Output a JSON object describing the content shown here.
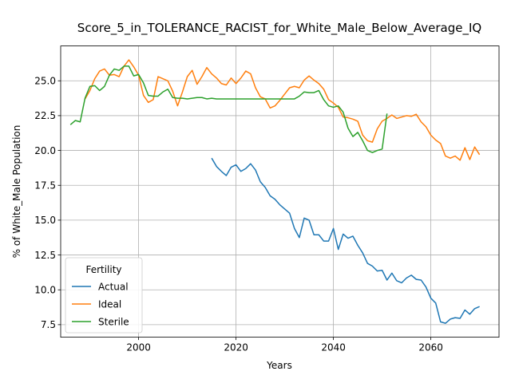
{
  "chart_data": {
    "type": "line",
    "title": "Score_5_in_TOLERANCE_RACIST_for_White_Male_Below_Average_IQ",
    "xlabel": "Years",
    "ylabel": "% of White_Male Population",
    "xlim": [
      1984,
      2074
    ],
    "ylim": [
      6.6,
      27.5
    ],
    "xticks": [
      2000,
      2020,
      2040,
      2060
    ],
    "yticks": [
      7.5,
      10.0,
      12.5,
      15.0,
      17.5,
      20.0,
      22.5,
      25.0
    ],
    "ytick_labels": [
      "7.5",
      "10.0",
      "12.5",
      "15.0",
      "17.5",
      "20.0",
      "22.5",
      "25.0"
    ],
    "grid": true,
    "legend": {
      "title": "Fertility",
      "placement": "lower-left"
    },
    "series": [
      {
        "name": "Actual",
        "color": "#1f77b4",
        "x": [
          2015,
          2016,
          2017,
          2018,
          2019,
          2020,
          2021,
          2022,
          2023,
          2024,
          2025,
          2026,
          2027,
          2028,
          2029,
          2030,
          2031,
          2032,
          2033,
          2034,
          2035,
          2036,
          2037,
          2038,
          2039,
          2040,
          2041,
          2042,
          2043,
          2044,
          2045,
          2046,
          2047,
          2048,
          2049,
          2050,
          2051,
          2052,
          2053,
          2054,
          2055,
          2056,
          2057,
          2058,
          2059,
          2060,
          2061,
          2062,
          2063,
          2064,
          2065,
          2066,
          2067,
          2068,
          2069,
          2070
        ],
        "values": [
          19.45,
          18.85,
          18.5,
          18.2,
          18.8,
          18.97,
          18.5,
          18.7,
          19.05,
          18.6,
          17.75,
          17.35,
          16.75,
          16.5,
          16.1,
          15.8,
          15.5,
          14.4,
          13.75,
          15.15,
          15.0,
          13.95,
          13.95,
          13.5,
          13.5,
          14.4,
          12.9,
          14.0,
          13.7,
          13.85,
          13.2,
          12.65,
          11.9,
          11.7,
          11.35,
          11.4,
          10.7,
          11.2,
          10.65,
          10.5,
          10.85,
          11.05,
          10.75,
          10.7,
          10.2,
          9.4,
          9.05,
          7.7,
          7.6,
          7.9,
          8.0,
          7.95,
          8.55,
          8.25,
          8.65,
          8.8
        ]
      },
      {
        "name": "Ideal",
        "color": "#ff7f0e",
        "x": [
          1989,
          1990,
          1991,
          1992,
          1993,
          1994,
          1995,
          1996,
          1997,
          1998,
          1999,
          2000,
          2001,
          2002,
          2003,
          2004,
          2005,
          2006,
          2007,
          2008,
          2009,
          2010,
          2011,
          2012,
          2013,
          2014,
          2015,
          2016,
          2017,
          2018,
          2019,
          2020,
          2021,
          2022,
          2023,
          2024,
          2025,
          2026,
          2027,
          2028,
          2029,
          2030,
          2031,
          2032,
          2033,
          2034,
          2035,
          2036,
          2037,
          2038,
          2039,
          2040,
          2041,
          2042,
          2043,
          2044,
          2045,
          2046,
          2047,
          2048,
          2049,
          2050,
          2051,
          2052,
          2053,
          2054,
          2055,
          2056,
          2057,
          2058,
          2059,
          2060,
          2061,
          2062,
          2063,
          2064,
          2065,
          2066,
          2067,
          2068,
          2069,
          2070
        ],
        "values": [
          23.7,
          24.3,
          25.15,
          25.7,
          25.85,
          25.4,
          25.45,
          25.3,
          26.05,
          26.5,
          26.0,
          25.4,
          23.95,
          23.45,
          23.65,
          25.3,
          25.15,
          25.0,
          24.25,
          23.2,
          24.2,
          25.3,
          25.75,
          24.75,
          25.3,
          25.95,
          25.5,
          25.2,
          24.8,
          24.7,
          25.2,
          24.8,
          25.2,
          25.7,
          25.5,
          24.5,
          23.85,
          23.7,
          23.05,
          23.2,
          23.6,
          24.05,
          24.5,
          24.6,
          24.5,
          25.05,
          25.35,
          25.05,
          24.8,
          24.4,
          23.65,
          23.4,
          23.1,
          22.4,
          22.35,
          22.25,
          22.1,
          21.1,
          20.7,
          20.6,
          21.55,
          22.1,
          22.3,
          22.55,
          22.3,
          22.4,
          22.5,
          22.45,
          22.6,
          22.05,
          21.7,
          21.1,
          20.75,
          20.5,
          19.6,
          19.45,
          19.6,
          19.3,
          20.2,
          19.35,
          20.25,
          19.7
        ]
      },
      {
        "name": "Sterile",
        "color": "#2ca02c",
        "x": [
          1986,
          1987,
          1988,
          1989,
          1990,
          1991,
          1992,
          1993,
          1994,
          1995,
          1996,
          1997,
          1998,
          1999,
          2000,
          2001,
          2002,
          2003,
          2004,
          2005,
          2006,
          2007,
          2008,
          2009,
          2010,
          2011,
          2012,
          2013,
          2014,
          2015,
          2016,
          2017,
          2018,
          2019,
          2020,
          2021,
          2022,
          2023,
          2024,
          2025,
          2026,
          2027,
          2028,
          2029,
          2030,
          2031,
          2032,
          2033,
          2034,
          2035,
          2036,
          2037,
          2038,
          2039,
          2040,
          2041,
          2042,
          2043,
          2044,
          2045,
          2046,
          2047,
          2048,
          2049,
          2050,
          2051
        ],
        "values": [
          21.85,
          22.15,
          22.05,
          23.75,
          24.6,
          24.65,
          24.3,
          24.6,
          25.4,
          25.85,
          25.75,
          26.05,
          26.05,
          25.35,
          25.45,
          24.85,
          23.95,
          23.9,
          23.9,
          24.2,
          24.4,
          23.8,
          23.75,
          23.75,
          23.7,
          23.75,
          23.8,
          23.8,
          23.7,
          23.75,
          23.7,
          23.7,
          23.7,
          23.7,
          23.7,
          23.7,
          23.7,
          23.7,
          23.7,
          23.7,
          23.7,
          23.7,
          23.7,
          23.7,
          23.7,
          23.7,
          23.7,
          23.9,
          24.2,
          24.15,
          24.15,
          24.3,
          23.65,
          23.2,
          23.1,
          23.2,
          22.75,
          21.6,
          21.0,
          21.3,
          20.7,
          20.0,
          19.85,
          20.0,
          20.1,
          22.65
        ]
      }
    ]
  }
}
